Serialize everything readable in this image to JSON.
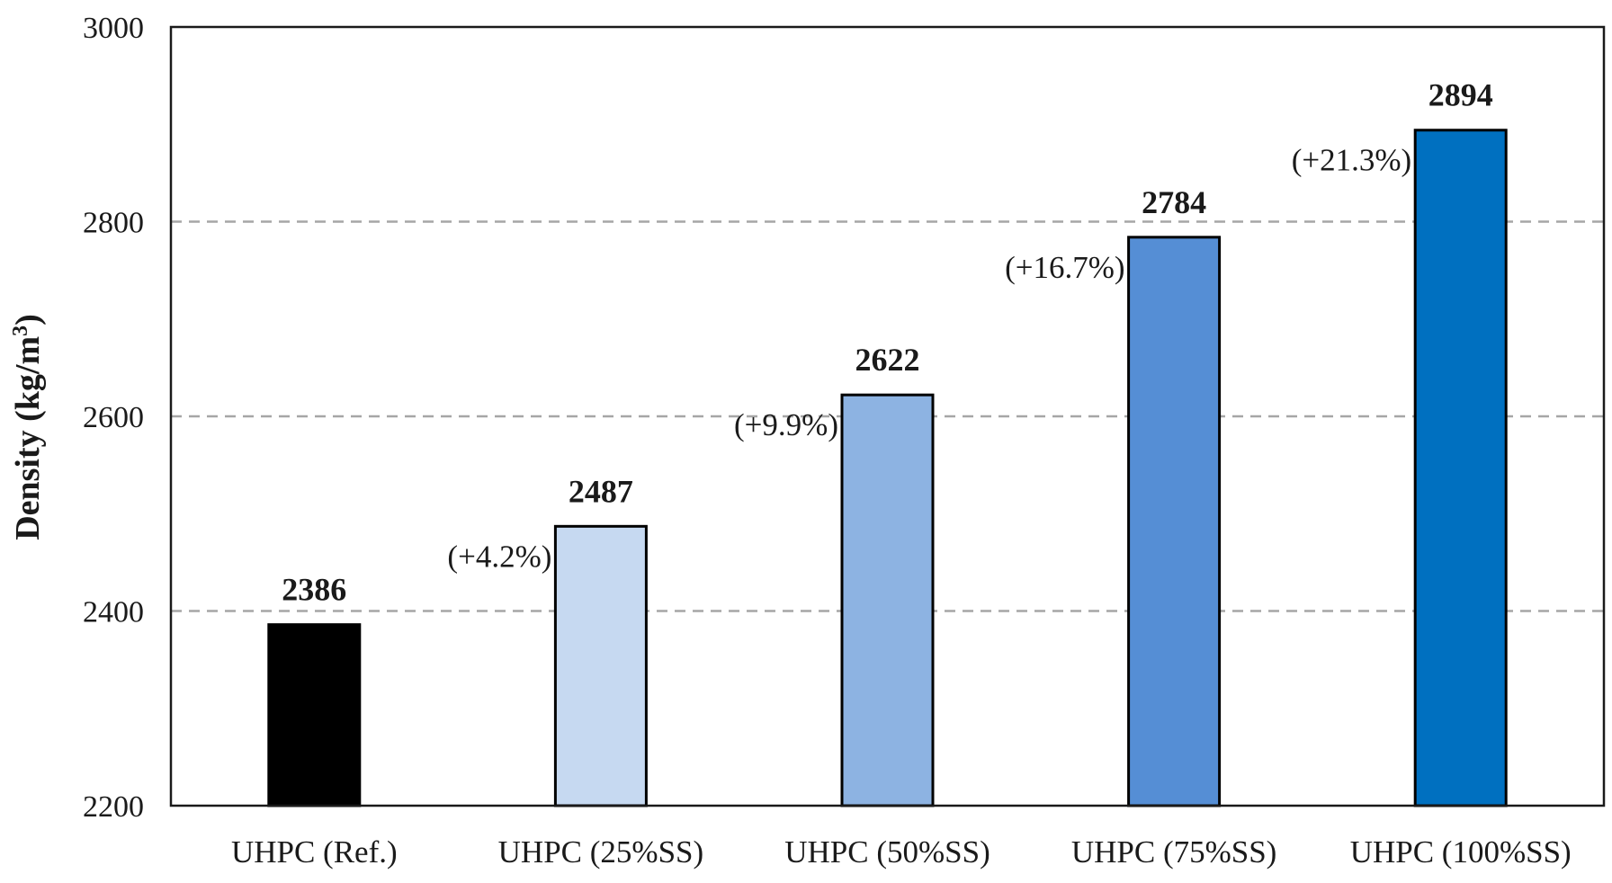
{
  "chart_data": {
    "type": "bar",
    "title": "",
    "xlabel": "",
    "ylabel": "Density (kg/m",
    "ylabel_sup": "3",
    "ylabel_close": ")",
    "ylim": [
      2200,
      3000
    ],
    "yticks": [
      "2200",
      "2400",
      "2600",
      "2800",
      "3000"
    ],
    "ytick_values": [
      2200,
      2400,
      2600,
      2800,
      3000
    ],
    "grid": "horizontal dashed",
    "categories": [
      "UHPC (Ref.)",
      "UHPC (25%SS)",
      "UHPC (50%SS)",
      "UHPC (75%SS)",
      "UHPC (100%SS)"
    ],
    "values": [
      2386,
      2487,
      2622,
      2784,
      2894
    ],
    "value_labels": [
      "2386",
      "2487",
      "2622",
      "2784",
      "2894"
    ],
    "change_labels": [
      "",
      "(+4.2%)",
      "(+9.9%)",
      "(+16.7%)",
      "(+21.3%)"
    ],
    "colors": [
      "#000000",
      "#c6d9f1",
      "#8db3e2",
      "#558ed5",
      "#0070c0"
    ]
  }
}
